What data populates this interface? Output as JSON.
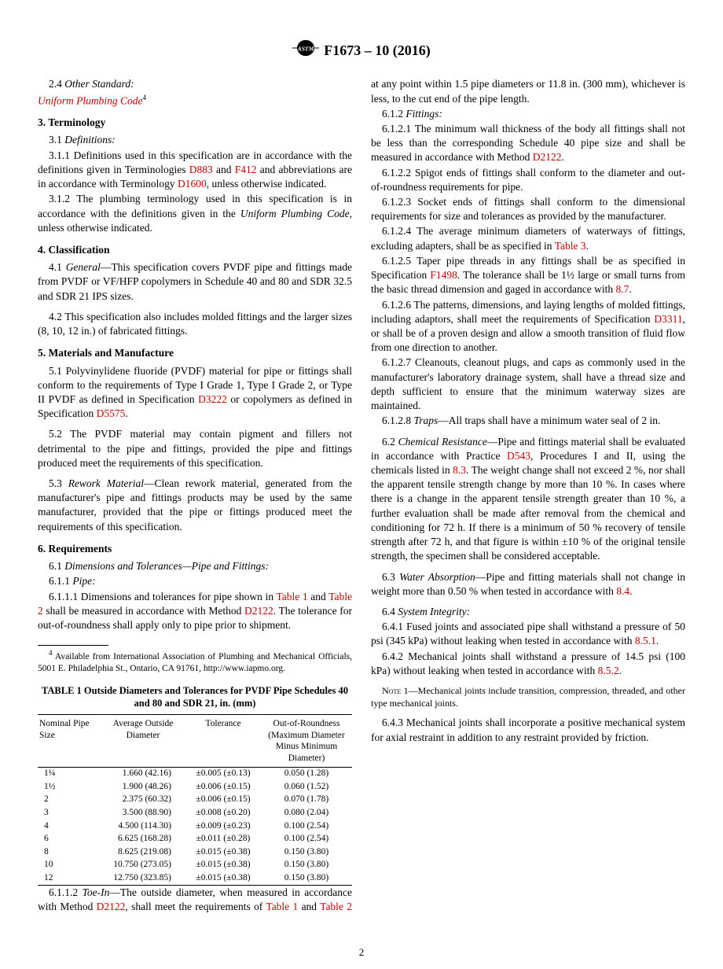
{
  "header": {
    "designation": "F1673 – 10 (2016)"
  },
  "left": {
    "s24": {
      "num": "2.4",
      "title": "Other Standard:",
      "line": "Uniform Plumbing Code",
      "sup": "4"
    },
    "h3": "3.  Terminology",
    "s31": {
      "num": "3.1",
      "title": "Definitions:"
    },
    "s311": {
      "num": "3.1.1",
      "t1": " Definitions used in this specification are in accordance with the definitions given in Terminologies ",
      "r1": "D883",
      "t2": " and ",
      "r2": "F412",
      "t3": " and abbreviations are in accordance with Terminology ",
      "r3": "D1600",
      "t4": ", unless otherwise indicated."
    },
    "s312": {
      "num": "3.1.2",
      "t1": " The plumbing terminology used in this specification is in accordance with the definitions given in the ",
      "it": "Uniform Plumbing Code",
      "t2": ", unless otherwise indicated."
    },
    "h4": "4.  Classification",
    "s41": {
      "num": "4.1",
      "it": "General",
      "t": "—This specification covers PVDF pipe and fittings made from PVDF or VF/HFP copolymers in Schedule 40 and 80 and SDR 32.5 and SDR 21 IPS sizes."
    },
    "s42": {
      "num": "4.2",
      "t": " This specification also includes molded fittings and the larger sizes (8, 10, 12 in.) of fabricated fittings."
    },
    "h5": "5.  Materials and Manufacture",
    "s51": {
      "num": "5.1",
      "t1": " Polyvinylidene fluoride (PVDF) material for pipe or fittings shall conform to the requirements of Type I Grade 1, Type I Grade 2, or Type II PVDF as defined in Specification ",
      "r1": "D3222",
      "t2": " or copolymers as defined in Specification ",
      "r2": "D5575",
      "t3": "."
    },
    "s52": {
      "num": "5.2",
      "t": " The PVDF material may contain pigment and fillers not detrimental to the pipe and fittings, provided the pipe and fittings produced meet the requirements of this specification."
    },
    "s53": {
      "num": "5.3",
      "it": "Rework Material",
      "t": "—Clean rework material, generated from the manufacturer's pipe and fittings products may be used by the same manufacturer, provided that the pipe or fittings produced meet the requirements of this specification."
    },
    "h6": "6.  Requirements",
    "s61": {
      "num": "6.1",
      "it": "Dimensions and Tolerances—Pipe and Fittings:"
    },
    "s611": {
      "num": "6.1.1",
      "it": "Pipe:"
    },
    "s6111": {
      "num": "6.1.1.1",
      "t1": " Dimensions and tolerances for pipe shown in ",
      "r1": "Table 1",
      "t2": " and ",
      "r2": "Table 2",
      "t3": " shall be measured in accordance with Method ",
      "r3": "D2122",
      "t4": ". The tolerance for out-of-roundness shall apply only to pipe prior to shipment."
    },
    "footnote": {
      "sup": "4",
      "t": " Available from International Association of Plumbing and Mechanical Officials, 5001 E. Philadelphia St., Ontario, CA 91761, http://www.iapmo.org."
    },
    "table1": {
      "title": "TABLE 1 Outside Diameters and Tolerances for PVDF Pipe Schedules 40 and 80 and SDR 21, in. (mm)",
      "headers": {
        "c1": "Nominal Pipe Size",
        "c2": "Average Outside Diameter",
        "c3": "Tolerance",
        "c4": "Out-of-Roundness (Maximum Diameter Minus Minimum Diameter)"
      },
      "rows": [
        {
          "size": "1¼",
          "od": "1.660   (42.16)",
          "tol": "±0.005 (±0.13)",
          "oor": "0.050 (1.28)"
        },
        {
          "size": "1½",
          "od": "1.900   (48.26)",
          "tol": "±0.006 (±0.15)",
          "oor": "0.060 (1.52)"
        },
        {
          "size": "2",
          "od": "2.375   (60.32)",
          "tol": "±0.006 (±0.15)",
          "oor": "0.070 (1.78)"
        },
        {
          "size": "3",
          "od": "3.500   (88.90)",
          "tol": "±0.008 (±0.20)",
          "oor": "0.080 (2.04)"
        },
        {
          "size": "4",
          "od": "4.500 (114.30)",
          "tol": "±0.009 (±0.23)",
          "oor": "0.100 (2.54)"
        },
        {
          "size": "6",
          "od": "6.625 (168.28)",
          "tol": "±0.011 (±0.28)",
          "oor": "0.100 (2.54)"
        },
        {
          "size": "8",
          "od": "8.625 (219.08)",
          "tol": "±0.015 (±0.38)",
          "oor": "0.150 (3.80)"
        },
        {
          "size": "10",
          "od": "10.750 (273.05)",
          "tol": "±0.015 (±0.38)",
          "oor": "0.150 (3.80)"
        },
        {
          "size": "12",
          "od": "12.750 (323.85)",
          "tol": "±0.015 (±0.38)",
          "oor": "0.150 (3.80)"
        }
      ]
    }
  },
  "right": {
    "s6112": {
      "num": "6.1.1.2",
      "it": "Toe-In",
      "t1": "—The outside diameter, when measured in accordance with Method ",
      "r1": "D2122",
      "t2": ", shall meet the requirements of ",
      "r2": "Table 1",
      "t3": " and ",
      "r3": "Table 2",
      "t4": " at any point within 1.5 pipe diameters or 11.8 in. (300 mm), whichever is less, to the cut end of the pipe length."
    },
    "s612": {
      "num": "6.1.2",
      "it": "Fittings:"
    },
    "s6121": {
      "num": "6.1.2.1",
      "t1": " The minimum wall thickness of the body all fittings shall not be less than the corresponding Schedule 40 pipe size and shall be measured in accordance with Method ",
      "r1": "D2122",
      "t2": "."
    },
    "s6122": {
      "num": "6.1.2.2",
      "t": " Spigot ends of fittings shall conform to the diameter and out-of-roundness requirements for pipe."
    },
    "s6123": {
      "num": "6.1.2.3",
      "t": " Socket ends of fittings shall conform to the dimensional requirements for size and tolerances as provided by the manufacturer."
    },
    "s6124": {
      "num": "6.1.2.4",
      "t1": " The average minimum diameters of waterways of fittings, excluding adapters, shall be as specified in ",
      "r1": "Table 3",
      "t2": "."
    },
    "s6125": {
      "num": "6.1.2.5",
      "t1": " Taper pipe threads in any fittings shall be as specified in Specification ",
      "r1": "F1498",
      "t2": ". The tolerance shall be 1½ large or small turns from the basic thread dimension and gaged in accordance with ",
      "r2": "8.7",
      "t3": "."
    },
    "s6126": {
      "num": "6.1.2.6",
      "t1": " The patterns, dimensions, and laying lengths of molded fittings, including adaptors, shall meet the requirements of Specification ",
      "r1": "D3311",
      "t2": ", or shall be of a proven design and allow a smooth transition of fluid flow from one direction to another."
    },
    "s6127": {
      "num": "6.1.2.7",
      "t": " Cleanouts, cleanout plugs, and caps as commonly used in the manufacturer's laboratory drainage system, shall have a thread size and depth sufficient to ensure that the minimum waterway sizes are maintained."
    },
    "s6128": {
      "num": "6.1.2.8",
      "it": "Traps",
      "t": "—All traps shall have a minimum water seal of 2 in."
    },
    "s62": {
      "num": "6.2",
      "it": "Chemical Resistance",
      "t1": "—Pipe and fittings material shall be evaluated in accordance with Practice ",
      "r1": "D543",
      "t2": ", Procedures I and II, using the chemicals listed in ",
      "r2": "8.3",
      "t3": ". The weight change shall not exceed 2 %, nor shall the apparent tensile strength change by more than 10 %. In cases where there is a change in the apparent tensile strength greater than 10 %, a further evaluation shall be made after removal from the chemical and conditioning for 72 h. If there is a minimum of 50 % recovery of tensile strength after 72 h, and that figure is within ±10 % of the original tensile strength, the specimen shall be considered acceptable."
    },
    "s63": {
      "num": "6.3",
      "it": "Water Absorption",
      "t1": "—Pipe and fitting materials shall not change in weight more than 0.50 % when tested in accordance with ",
      "r1": "8.4",
      "t2": "."
    },
    "s64": {
      "num": "6.4",
      "it": "System Integrity:"
    },
    "s641": {
      "num": "6.4.1",
      "t1": " Fused joints and associated pipe shall withstand a pressure of 50 psi (345 kPa) without leaking when tested in accordance with ",
      "r1": "8.5.1",
      "t2": "."
    },
    "s642": {
      "num": "6.4.2",
      "t1": " Mechanical joints shall withstand a pressure of 14.5 psi (100 kPa) without leaking when tested in accordance with ",
      "r1": "8.5.2",
      "t2": "."
    },
    "note1": {
      "label": "Note",
      "num": " 1—",
      "t": "Mechanical joints include transition, compression, threaded, and other type mechanical joints."
    },
    "s643": {
      "num": "6.4.3",
      "t": " Mechanical joints shall incorporate a positive mechanical system for axial restraint in addition to any restraint provided by friction."
    }
  },
  "pagenum": "2"
}
